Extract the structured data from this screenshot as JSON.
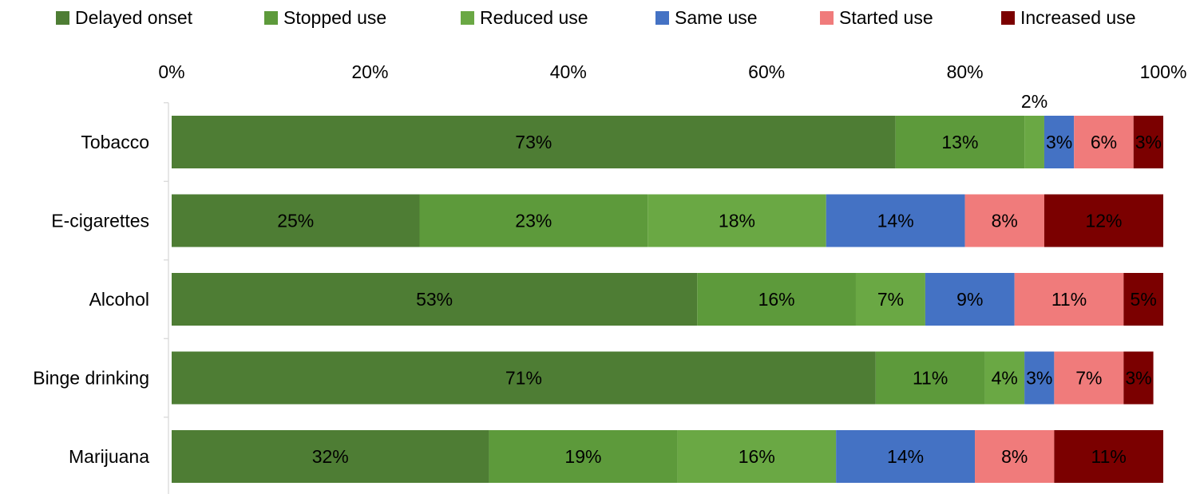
{
  "chart_data": {
    "type": "bar",
    "orientation": "horizontal",
    "stacked": true,
    "percent_axis": true,
    "legend_position": "top",
    "grid": false,
    "xlim": [
      0,
      1
    ],
    "x_ticks": [
      0,
      0.2,
      0.4,
      0.6,
      0.8,
      1.0
    ],
    "x_tick_labels": [
      "0%",
      "20%",
      "40%",
      "60%",
      "80%",
      "100%"
    ],
    "categories": [
      "Tobacco",
      "E-cigarettes",
      "Alcohol",
      "Binge drinking",
      "Marijuana"
    ],
    "series": [
      {
        "name": "Delayed onset",
        "color": "#4e7d34",
        "label_color": "#000000",
        "values": [
          0.73,
          0.25,
          0.53,
          0.71,
          0.32
        ],
        "labels": [
          "73%",
          "25%",
          "53%",
          "71%",
          "32%"
        ]
      },
      {
        "name": "Stopped use",
        "color": "#5d9a3b",
        "label_color": "#000000",
        "values": [
          0.13,
          0.23,
          0.16,
          0.11,
          0.19
        ],
        "labels": [
          "13%",
          "23%",
          "16%",
          "11%",
          "19%"
        ]
      },
      {
        "name": "Reduced use",
        "color": "#6aa844",
        "label_color": "#000000",
        "values": [
          0.02,
          0.18,
          0.07,
          0.04,
          0.16
        ],
        "labels": [
          "2%",
          "18%",
          "7%",
          "4%",
          "16%"
        ],
        "label_above": [
          true,
          false,
          false,
          false,
          false
        ]
      },
      {
        "name": "Same use",
        "color": "#4472c4",
        "label_color": "#000000",
        "values": [
          0.03,
          0.14,
          0.09,
          0.03,
          0.14
        ],
        "labels": [
          "3%",
          "14%",
          "9%",
          "3%",
          "14%"
        ]
      },
      {
        "name": "Started use",
        "color": "#f07b7b",
        "label_color": "#000000",
        "values": [
          0.06,
          0.08,
          0.11,
          0.07,
          0.08
        ],
        "labels": [
          "6%",
          "8%",
          "11%",
          "7%",
          "8%"
        ]
      },
      {
        "name": "Increased use",
        "color": "#7b0000",
        "label_color": "#ffffff",
        "values": [
          0.03,
          0.12,
          0.05,
          0.03,
          0.11
        ],
        "labels": [
          "3%",
          "12%",
          "5%",
          "3%",
          "11%"
        ]
      }
    ]
  }
}
